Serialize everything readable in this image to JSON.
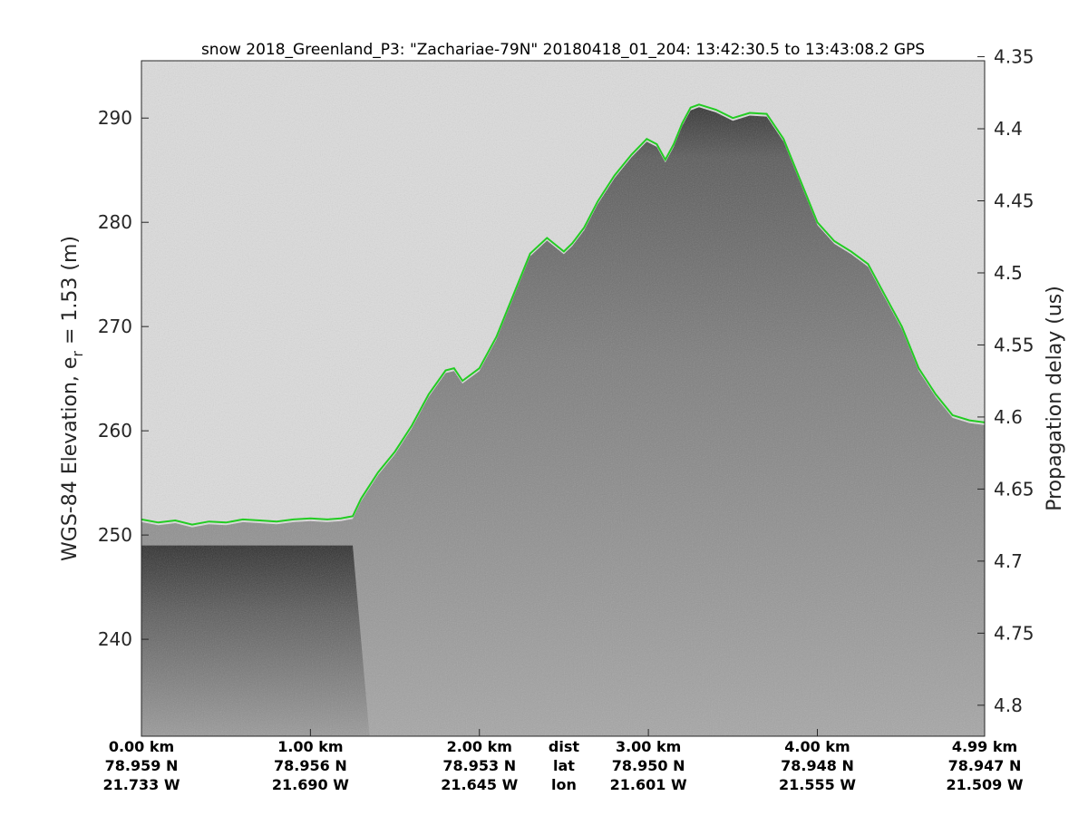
{
  "chart_data": {
    "type": "line",
    "title": "snow 2018_Greenland_P3: \"Zachariae-79N\"  20180418_01_204: 13:42:30.5 to 13:43:08.2 GPS",
    "ylabel_main": "WGS-84 Elevation, e",
    "ylabel_sub": "r",
    "ylabel_rest": " = 1.53 (m)",
    "y2label": "Propagation delay (us)",
    "ylim": [
      230.7,
      295.5
    ],
    "xlim": [
      0,
      4.99
    ],
    "yticks": [
      240,
      250,
      260,
      270,
      280,
      290
    ],
    "y2lim": [
      4.3528,
      4.8215
    ],
    "y2ticks": [
      4.35,
      4.4,
      4.45,
      4.5,
      4.55,
      4.6,
      4.65,
      4.7,
      4.75,
      4.8
    ],
    "x_rows": {
      "dist": [
        "0.00 km",
        "1.00 km",
        "2.00 km",
        "3.00 km",
        "4.00 km",
        "4.99 km"
      ],
      "lat": [
        "78.959 N",
        "78.956 N",
        "78.953 N",
        "78.950 N",
        "78.948 N",
        "78.947 N"
      ],
      "lon": [
        "21.733 W",
        "21.690 W",
        "21.645 W",
        "21.601 W",
        "21.555 W",
        "21.509 W"
      ]
    },
    "x_row_positions_km": [
      0,
      1,
      2,
      3,
      4,
      4.99
    ],
    "x_row_labels": [
      "dist",
      "lat",
      "lon"
    ],
    "x_row_label_position_km": 2.5,
    "series": [
      {
        "color": "#22cc22",
        "x": [
          0,
          0.1,
          0.2,
          0.3,
          0.4,
          0.5,
          0.6,
          0.7,
          0.8,
          0.9,
          1.0,
          1.1,
          1.18,
          1.25,
          1.3,
          1.4,
          1.5,
          1.6,
          1.7,
          1.8,
          1.85,
          1.9,
          2.0,
          2.1,
          2.2,
          2.3,
          2.4,
          2.5,
          2.55,
          2.62,
          2.7,
          2.8,
          2.9,
          2.99,
          3.05,
          3.1,
          3.15,
          3.2,
          3.25,
          3.3,
          3.4,
          3.5,
          3.6,
          3.7,
          3.8,
          3.9,
          4.0,
          4.1,
          4.2,
          4.3,
          4.4,
          4.5,
          4.6,
          4.7,
          4.8,
          4.9,
          4.99
        ],
        "y": [
          251.5,
          251.2,
          251.4,
          251.0,
          251.3,
          251.2,
          251.5,
          251.4,
          251.3,
          251.5,
          251.6,
          251.5,
          251.6,
          251.8,
          253.5,
          256.0,
          258.0,
          260.5,
          263.5,
          265.8,
          266.0,
          264.8,
          266.0,
          269.0,
          273.0,
          277.0,
          278.5,
          277.2,
          278.0,
          279.5,
          282.0,
          284.5,
          286.5,
          288.0,
          287.5,
          286.0,
          287.5,
          289.5,
          291.0,
          291.3,
          290.8,
          290.0,
          290.5,
          290.4,
          288.0,
          284.0,
          280.0,
          278.2,
          277.2,
          276.0,
          273.0,
          270.0,
          266.0,
          263.5,
          261.5,
          261.0,
          260.8
        ]
      }
    ],
    "grid": false
  }
}
